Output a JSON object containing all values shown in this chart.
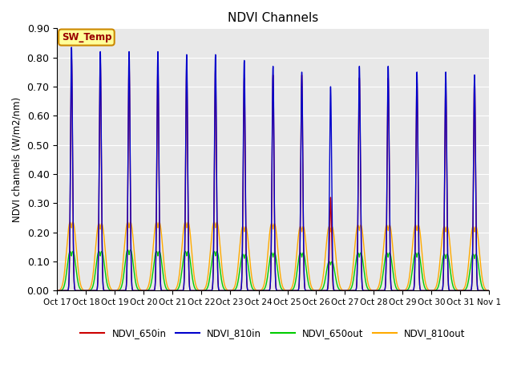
{
  "title": "NDVI Channels",
  "ylabel": "NDVI channels (W/m2/nm)",
  "ylim": [
    0.0,
    0.9
  ],
  "yticks": [
    0.0,
    0.1,
    0.2,
    0.3,
    0.4,
    0.5,
    0.6,
    0.7,
    0.8,
    0.9
  ],
  "bg_color": "#e8e8e8",
  "legend_entries": [
    "NDVI_650in",
    "NDVI_810in",
    "NDVI_650out",
    "NDVI_810out"
  ],
  "legend_colors": [
    "#cc0000",
    "#0000cc",
    "#00cc00",
    "#ffaa00"
  ],
  "annotation_text": "SW_Temp",
  "annotation_bg": "#ffff99",
  "annotation_border": "#cc8800",
  "annotation_text_color": "#990000",
  "peak_heights_810in": [
    0.835,
    0.82,
    0.82,
    0.82,
    0.81,
    0.81,
    0.79,
    0.77,
    0.75,
    0.7,
    0.77,
    0.77,
    0.75,
    0.75,
    0.74
  ],
  "peak_heights_650in": [
    0.8,
    0.79,
    0.78,
    0.77,
    0.77,
    0.76,
    0.73,
    0.74,
    0.74,
    0.32,
    0.73,
    0.73,
    0.72,
    0.71,
    0.73
  ],
  "peak_heights_810out": [
    0.235,
    0.23,
    0.235,
    0.235,
    0.235,
    0.235,
    0.22,
    0.23,
    0.22,
    0.22,
    0.225,
    0.225,
    0.225,
    0.22,
    0.22
  ],
  "peak_heights_650out": [
    0.135,
    0.135,
    0.14,
    0.135,
    0.135,
    0.135,
    0.125,
    0.13,
    0.13,
    0.1,
    0.13,
    0.13,
    0.13,
    0.125,
    0.125
  ],
  "x_tick_labels": [
    "Oct 17",
    "Oct 18",
    "Oct 19",
    "Oct 20",
    "Oct 21",
    "Oct 22",
    "Oct 23",
    "Oct 24",
    "Oct 25",
    "Oct 26",
    "Oct 27",
    "Oct 28",
    "Oct 29",
    "Oct 30",
    "Oct 31",
    "Nov 1"
  ],
  "num_days": 15,
  "figsize": [
    6.4,
    4.8
  ],
  "dpi": 100
}
